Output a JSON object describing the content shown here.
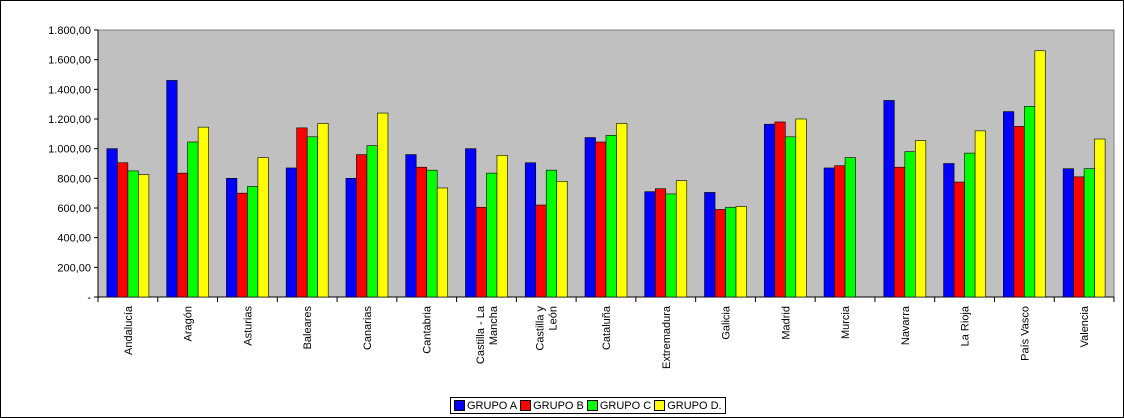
{
  "chart_data": {
    "type": "bar",
    "categories": [
      "Andalucía",
      "Aragón",
      "Asturias",
      "Baleares",
      "Canarias",
      "Cantabria",
      "Castilla - La Mancha",
      "Castilla y León",
      "Cataluña",
      "Extremadura",
      "Galicia",
      "Madrid",
      "Murcia",
      "Navarra",
      "La Rioja",
      "País Vasco",
      "Valencia"
    ],
    "series": [
      {
        "name": "GRUPO A",
        "color": "#0000ff",
        "values": [
          1000,
          1460,
          800,
          870,
          800,
          960,
          1000,
          905,
          1075,
          710,
          705,
          1165,
          870,
          1325,
          900,
          1250,
          865
        ]
      },
      {
        "name": "GRUPO B",
        "color": "#ff0000",
        "values": [
          905,
          835,
          700,
          1140,
          960,
          875,
          605,
          620,
          1045,
          730,
          590,
          1180,
          885,
          875,
          775,
          1150,
          810
        ]
      },
      {
        "name": "GRUPO C",
        "color": "#00ff00",
        "values": [
          850,
          1045,
          745,
          1080,
          1020,
          855,
          835,
          855,
          1090,
          695,
          605,
          1080,
          940,
          980,
          970,
          1285,
          865
        ]
      },
      {
        "name": "GRUPO D.",
        "color": "#ffff00",
        "values": [
          825,
          1145,
          940,
          1170,
          1240,
          735,
          955,
          780,
          1170,
          785,
          610,
          1200,
          null,
          1055,
          1120,
          1660,
          1065
        ]
      }
    ],
    "yticks": [
      "-",
      "200,00",
      "400,00",
      "600,00",
      "800,00",
      "1.000,00",
      "1.200,00",
      "1.400,00",
      "1.600,00",
      "1.800,00"
    ],
    "ylim": [
      0,
      1800
    ],
    "grid": false,
    "plot_background": "#c0c0c0",
    "legend_position": "bottom"
  }
}
